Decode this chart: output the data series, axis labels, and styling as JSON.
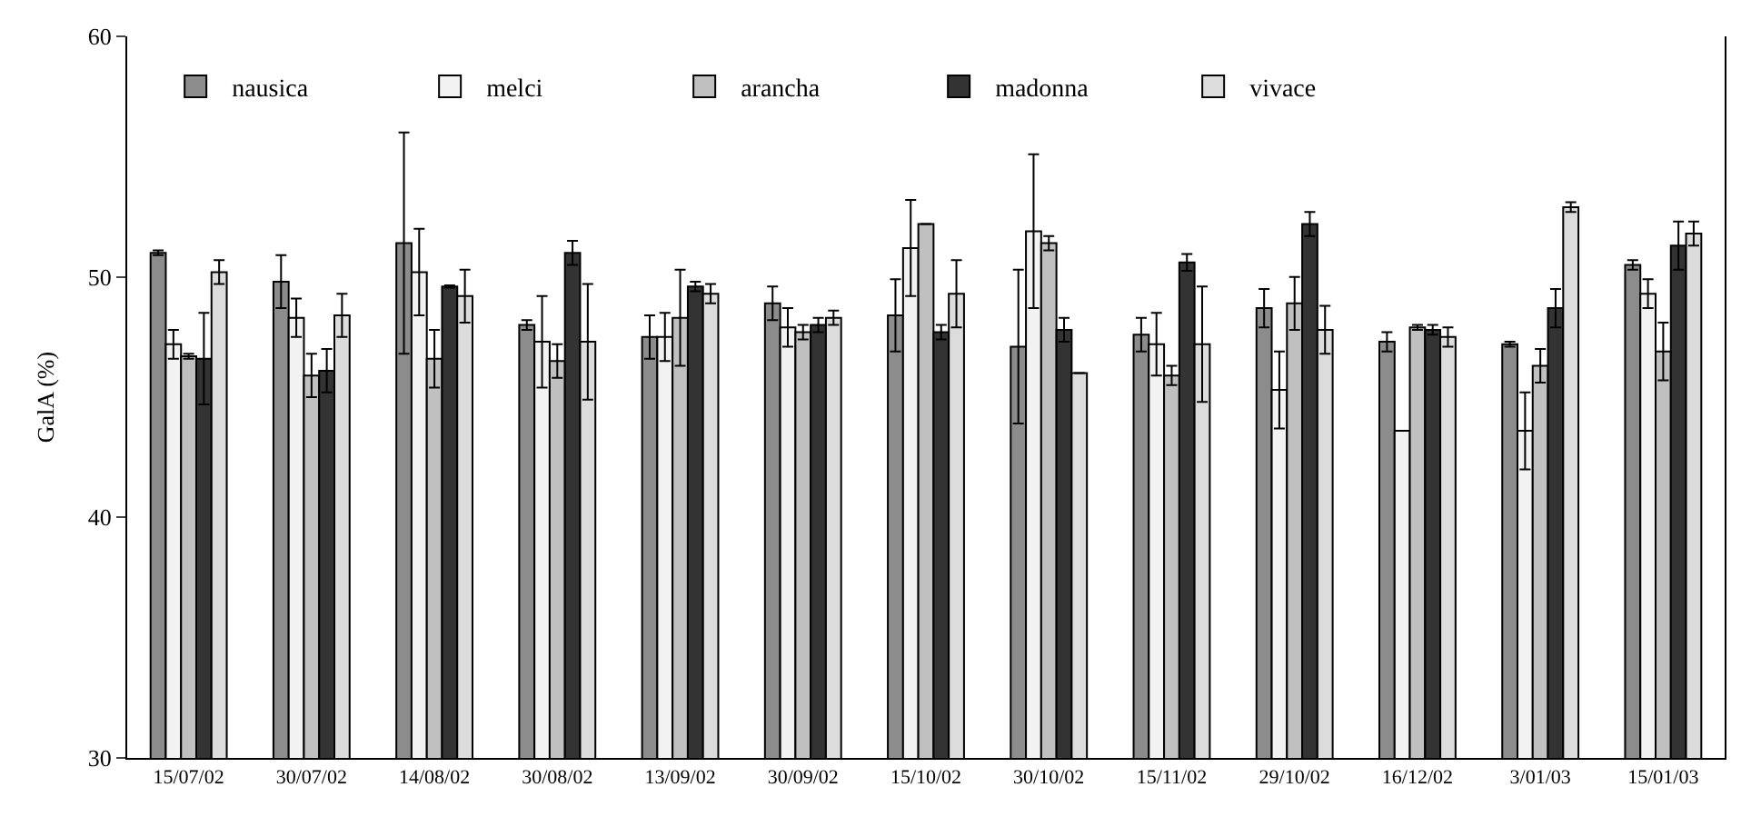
{
  "chart_data": {
    "type": "bar",
    "ylabel": "GalA (%)",
    "categories": [
      "15/07/02",
      "30/07/02",
      "14/08/02",
      "30/08/02",
      "13/09/02",
      "30/09/02",
      "15/10/02",
      "30/10/02",
      "15/11/02",
      "29/10/02",
      "16/12/02",
      "3/01/03",
      "15/01/03"
    ],
    "ylim": [
      30,
      60
    ],
    "yticks": [
      30,
      40,
      50,
      60
    ],
    "grid": false,
    "legend": "top left",
    "series": [
      {
        "name": "nausica",
        "color": "#8c8c8c",
        "values": [
          51.0,
          49.8,
          51.4,
          48.0,
          47.5,
          48.9,
          48.4,
          47.1,
          47.6,
          48.7,
          47.3,
          47.2,
          50.5
        ],
        "errors": [
          0.1,
          1.1,
          4.6,
          0.2,
          0.9,
          0.7,
          1.5,
          3.2,
          0.7,
          0.8,
          0.4,
          0.1,
          0.2
        ]
      },
      {
        "name": "melci",
        "color": "#f2f2f2",
        "values": [
          47.2,
          48.3,
          50.2,
          47.3,
          47.5,
          47.9,
          51.2,
          51.9,
          47.2,
          45.3,
          43.6,
          43.6,
          49.3
        ],
        "errors": [
          0.6,
          0.8,
          1.8,
          1.9,
          1.0,
          0.8,
          2.0,
          3.2,
          1.3,
          1.6,
          null,
          1.6,
          0.6
        ]
      },
      {
        "name": "arancha",
        "color": "#c0c0c0",
        "values": [
          46.7,
          45.9,
          46.6,
          46.5,
          48.3,
          47.7,
          52.2,
          51.4,
          45.9,
          48.9,
          47.9,
          46.3,
          46.9
        ],
        "errors": [
          0.1,
          0.9,
          1.2,
          0.7,
          2.0,
          0.3,
          null,
          0.3,
          0.4,
          1.1,
          0.1,
          0.7,
          1.2
        ]
      },
      {
        "name": "madonna",
        "color": "#333333",
        "values": [
          46.6,
          46.1,
          49.6,
          51.0,
          49.6,
          48.0,
          47.7,
          47.8,
          50.6,
          52.2,
          47.8,
          48.7,
          51.3
        ],
        "errors": [
          1.9,
          0.9,
          0.05,
          0.5,
          0.2,
          0.3,
          0.3,
          0.5,
          0.35,
          0.5,
          0.2,
          0.8,
          1.0
        ]
      },
      {
        "name": "vivace",
        "color": "#dcdcdc",
        "values": [
          50.2,
          48.4,
          49.2,
          47.3,
          49.3,
          48.3,
          49.3,
          46.0,
          47.2,
          47.8,
          47.5,
          52.9,
          51.8
        ],
        "errors": [
          0.5,
          0.9,
          1.1,
          2.4,
          0.4,
          0.3,
          1.4,
          null,
          2.4,
          1.0,
          0.4,
          0.2,
          0.5
        ]
      }
    ]
  }
}
